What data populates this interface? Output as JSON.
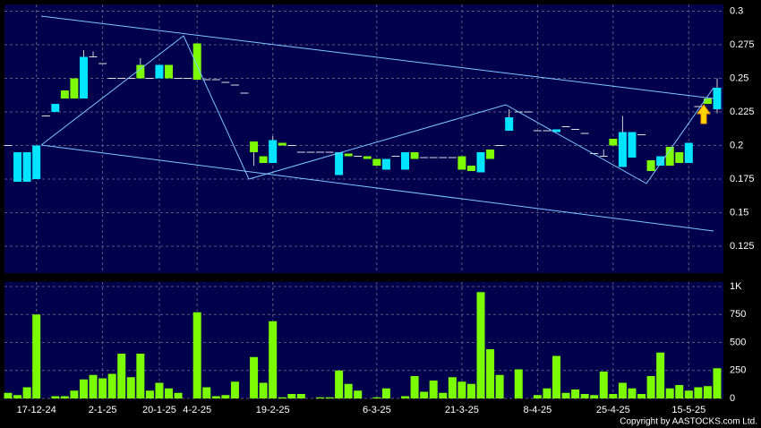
{
  "chart_data": {
    "type": "candlestick",
    "categories": [
      null,
      null,
      null,
      "17-12-24",
      null,
      null,
      null,
      null,
      null,
      null,
      "2-1-25",
      null,
      null,
      null,
      null,
      null,
      "20-1-25",
      null,
      null,
      null,
      "4-2-25",
      null,
      null,
      null,
      null,
      null,
      null,
      null,
      "19-2-25",
      null,
      null,
      null,
      null,
      null,
      null,
      null,
      null,
      null,
      null,
      "6-3-25",
      null,
      null,
      null,
      null,
      null,
      null,
      null,
      null,
      "21-3-25",
      null,
      null,
      null,
      null,
      null,
      null,
      null,
      "8-4-25",
      null,
      null,
      null,
      null,
      null,
      null,
      null,
      "25-4-25",
      null,
      null,
      null,
      null,
      null,
      null,
      null,
      "15-5-25",
      null,
      null,
      null
    ],
    "open": [
      0.2,
      0.195,
      0.195,
      0.2,
      0.222,
      0.231,
      0.235,
      0.235,
      0.266,
      0.266,
      0.261,
      0.25,
      0.25,
      0.25,
      0.25,
      0.25,
      0.26,
      0.25,
      0.25,
      0.25,
      0.249,
      0.249,
      0.249,
      0.247,
      0.245,
      0.239,
      0.195,
      0.187,
      0.204,
      0.2,
      0.2,
      0.195,
      0.195,
      0.195,
      0.195,
      0.195,
      0.192,
      0.192,
      0.19,
      0.185,
      0.19,
      0.192,
      0.195,
      0.19,
      0.191,
      0.191,
      0.191,
      0.191,
      0.182,
      0.181,
      0.195,
      0.19,
      0.2,
      0.221,
      0.225,
      0.225,
      0.211,
      0.211,
      0.212,
      0.214,
      0.212,
      0.209,
      0.194,
      0.192,
      0.2,
      0.21,
      0.21,
      0.208,
      0.181,
      0.192,
      0.185,
      0.187,
      0.202,
      0.229,
      0.231,
      0.243
    ],
    "high": [
      0.2,
      0.195,
      0.195,
      0.2,
      0.222,
      0.231,
      0.241,
      0.25,
      0.271,
      0.27,
      0.261,
      0.25,
      0.25,
      0.25,
      0.265,
      0.25,
      0.26,
      0.26,
      0.25,
      0.25,
      0.276,
      0.249,
      0.249,
      0.247,
      0.245,
      0.239,
      0.203,
      0.192,
      0.207,
      0.202,
      0.2,
      0.195,
      0.195,
      0.195,
      0.195,
      0.195,
      0.194,
      0.192,
      0.192,
      0.19,
      0.19,
      0.192,
      0.195,
      0.195,
      0.191,
      0.191,
      0.191,
      0.191,
      0.192,
      0.185,
      0.195,
      0.197,
      0.2,
      0.227,
      0.225,
      0.225,
      0.211,
      0.211,
      0.212,
      0.214,
      0.212,
      0.209,
      0.194,
      0.197,
      0.205,
      0.222,
      0.21,
      0.208,
      0.189,
      0.192,
      0.199,
      0.195,
      0.202,
      0.229,
      0.235,
      0.25
    ],
    "low": [
      0.2,
      0.173,
      0.173,
      0.175,
      0.222,
      0.225,
      0.235,
      0.235,
      0.235,
      0.266,
      0.261,
      0.25,
      0.25,
      0.25,
      0.25,
      0.25,
      0.25,
      0.25,
      0.25,
      0.25,
      0.249,
      0.249,
      0.249,
      0.247,
      0.245,
      0.239,
      0.185,
      0.187,
      0.187,
      0.2,
      0.2,
      0.195,
      0.195,
      0.195,
      0.195,
      0.178,
      0.192,
      0.192,
      0.19,
      0.185,
      0.182,
      0.192,
      0.182,
      0.19,
      0.191,
      0.191,
      0.191,
      0.191,
      0.182,
      0.181,
      0.18,
      0.19,
      0.2,
      0.211,
      0.225,
      0.225,
      0.211,
      0.211,
      0.21,
      0.214,
      0.212,
      0.209,
      0.194,
      0.192,
      0.2,
      0.184,
      0.191,
      0.208,
      0.181,
      0.185,
      0.185,
      0.187,
      0.187,
      0.229,
      0.231,
      0.224
    ],
    "close": [
      0.2,
      0.173,
      0.173,
      0.175,
      0.222,
      0.225,
      0.241,
      0.25,
      0.235,
      0.266,
      0.261,
      0.25,
      0.25,
      0.25,
      0.26,
      0.25,
      0.25,
      0.26,
      0.25,
      0.25,
      0.276,
      0.249,
      0.249,
      0.247,
      0.245,
      0.239,
      0.203,
      0.192,
      0.187,
      0.202,
      0.2,
      0.195,
      0.195,
      0.195,
      0.195,
      0.178,
      0.194,
      0.192,
      0.192,
      0.19,
      0.182,
      0.192,
      0.182,
      0.195,
      0.191,
      0.191,
      0.191,
      0.191,
      0.192,
      0.185,
      0.18,
      0.197,
      0.2,
      0.211,
      0.225,
      0.225,
      0.211,
      0.211,
      0.21,
      0.214,
      0.212,
      0.209,
      0.194,
      0.192,
      0.205,
      0.184,
      0.191,
      0.208,
      0.189,
      0.185,
      0.199,
      0.195,
      0.187,
      0.229,
      0.235,
      0.227
    ],
    "volume": [
      50,
      30,
      100,
      750,
      0,
      20,
      20,
      70,
      170,
      210,
      180,
      220,
      400,
      190,
      400,
      70,
      140,
      90,
      50,
      0,
      770,
      100,
      20,
      30,
      150,
      0,
      370,
      140,
      690,
      10,
      40,
      40,
      0,
      10,
      10,
      250,
      130,
      70,
      0,
      10,
      90,
      0,
      20,
      200,
      60,
      160,
      50,
      190,
      150,
      130,
      950,
      440,
      210,
      0,
      260,
      0,
      30,
      90,
      380,
      50,
      80,
      40,
      30,
      240,
      40,
      140,
      90,
      40,
      200,
      410,
      90,
      120,
      70,
      100,
      110,
      270
    ],
    "up_color": "#7cfc00",
    "down_color": "#00e5ff",
    "volume_color": "#7cfc00",
    "ylim": [
      0.105,
      0.305
    ],
    "yticks": [
      0.125,
      0.15,
      0.175,
      0.2,
      0.225,
      0.25,
      0.275,
      0.3
    ],
    "volume_ylim": [
      0,
      1040
    ],
    "volume_yticks": [
      0,
      250,
      500,
      750,
      {
        "value": 1000,
        "label": "1K"
      }
    ],
    "grid": true,
    "copyright": "Copyright by AASTOCKS.com Ltd."
  }
}
